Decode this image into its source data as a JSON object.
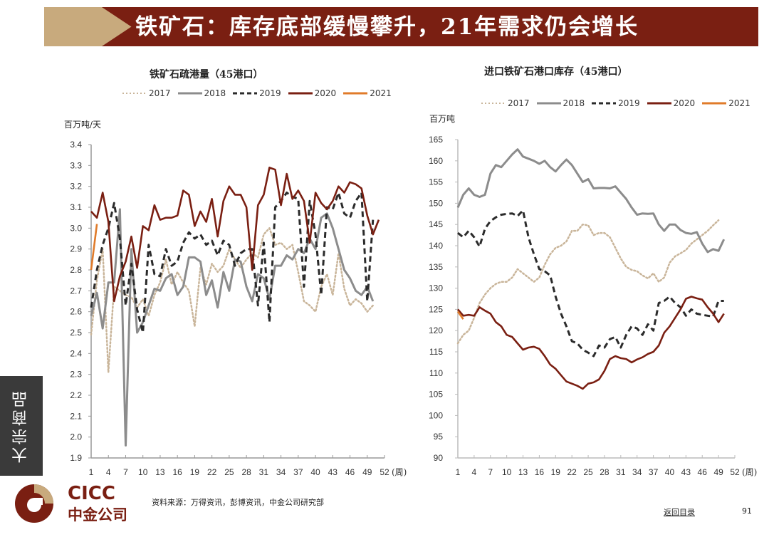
{
  "header": {
    "title": "铁矿石：库存底部缓慢攀升，21年需求仍会增长"
  },
  "side_tab": "大宗商品",
  "footer": {
    "logo_en": "CICC",
    "logo_cn": "中金公司",
    "source": "资料来源：万得资讯，彭博资讯，中金公司研究部",
    "back_link": "返回目录",
    "page_number": "91"
  },
  "colors": {
    "2017": "#c9b59a",
    "2018": "#8c8c8c",
    "2019": "#2b2b2b",
    "2020": "#7a1f12",
    "2021": "#e07b2a",
    "banner": "#7a1f12",
    "banner_accent": "#c8aa7d"
  },
  "chart_data": [
    {
      "type": "line",
      "title": "铁矿石疏港量（45港口）",
      "ylabel": "百万吨/天",
      "xlabel": "(周)",
      "ylim": [
        1.9,
        3.4
      ],
      "yticks": [
        "1.9",
        "2.0",
        "2.1",
        "2.2",
        "2.3",
        "2.4",
        "2.5",
        "2.6",
        "2.7",
        "2.8",
        "2.9",
        "3.0",
        "3.1",
        "3.2",
        "3.3",
        "3.4"
      ],
      "xticks": [
        "1",
        "4",
        "7",
        "10",
        "13",
        "16",
        "19",
        "22",
        "25",
        "28",
        "31",
        "34",
        "37",
        "40",
        "43",
        "46",
        "49",
        "52"
      ],
      "xlim": [
        1,
        52
      ],
      "legend": "top",
      "series": [
        {
          "name": "2017",
          "style": "dotted",
          "values": [
            2.49,
            2.75,
            2.9,
            2.31,
            2.72,
            2.7,
            2.68,
            2.67,
            2.62,
            2.66,
            2.58,
            2.68,
            2.74,
            2.85,
            2.73,
            2.79,
            2.74,
            2.7,
            2.53,
            2.81,
            2.73,
            2.83,
            2.79,
            2.82,
            2.9,
            2.85,
            2.81,
            2.85,
            2.88,
            2.86,
            2.97,
            3.0,
            2.92,
            2.93,
            2.9,
            2.92,
            2.79,
            2.65,
            2.63,
            2.6,
            2.72,
            2.78,
            2.68,
            2.88,
            2.71,
            2.63,
            2.66,
            2.64,
            2.6,
            2.63
          ]
        },
        {
          "name": "2018",
          "style": "solid",
          "values": [
            2.58,
            2.69,
            2.52,
            2.74,
            2.74,
            3.09,
            1.96,
            2.9,
            2.5,
            2.55,
            2.63,
            2.71,
            2.7,
            2.76,
            2.78,
            2.68,
            2.72,
            2.86,
            2.86,
            2.84,
            2.68,
            2.75,
            2.62,
            2.79,
            2.7,
            2.85,
            2.84,
            2.72,
            2.65,
            2.78,
            2.76,
            2.66,
            2.82,
            2.82,
            2.87,
            2.85,
            2.9,
            2.88,
            2.95,
            2.9,
            3.05,
            3.07,
            3.0,
            2.9,
            2.8,
            2.76,
            2.7,
            2.68,
            2.72,
            2.65
          ]
        },
        {
          "name": "2019",
          "style": "dashed",
          "values": [
            2.62,
            2.8,
            2.92,
            3.0,
            3.12,
            2.95,
            2.63,
            2.83,
            2.61,
            2.5,
            2.92,
            2.78,
            2.77,
            2.9,
            2.82,
            2.84,
            2.93,
            2.98,
            2.95,
            2.97,
            2.92,
            2.94,
            2.87,
            2.94,
            2.92,
            2.82,
            2.88,
            2.9,
            2.9,
            2.63,
            2.93,
            2.55,
            3.1,
            3.13,
            3.17,
            3.15,
            3.14,
            2.72,
            3.13,
            2.97,
            2.68,
            3.1,
            3.09,
            3.17,
            3.07,
            3.05,
            3.13,
            3.17,
            2.65,
            3.04
          ]
        },
        {
          "name": "2020",
          "style": "solid",
          "values": [
            3.08,
            3.05,
            3.17,
            3.03,
            2.65,
            2.77,
            2.84,
            2.96,
            2.81,
            3.01,
            2.99,
            3.11,
            3.04,
            3.05,
            3.05,
            3.06,
            3.18,
            3.16,
            3.01,
            3.08,
            3.03,
            3.14,
            2.96,
            3.13,
            3.2,
            3.16,
            3.16,
            3.1,
            2.8,
            3.11,
            3.16,
            3.29,
            3.28,
            3.11,
            3.26,
            3.14,
            3.18,
            3.13,
            2.93,
            3.17,
            3.12,
            3.09,
            3.13,
            3.2,
            3.17,
            3.22,
            3.21,
            3.19,
            3.06,
            2.97,
            3.04
          ]
        },
        {
          "name": "2021",
          "style": "solid",
          "values": [
            2.8,
            3.02
          ]
        }
      ]
    },
    {
      "type": "line",
      "title": "进口铁矿石港口库存（45港口）",
      "ylabel": "百万吨",
      "xlabel": "(周)",
      "ylim": [
        90,
        165
      ],
      "yticks": [
        "90",
        "95",
        "100",
        "105",
        "110",
        "115",
        "120",
        "125",
        "130",
        "135",
        "140",
        "145",
        "150",
        "155",
        "160",
        "165"
      ],
      "xticks": [
        "1",
        "4",
        "7",
        "10",
        "13",
        "16",
        "19",
        "22",
        "25",
        "28",
        "31",
        "34",
        "37",
        "40",
        "43",
        "46",
        "49",
        "52"
      ],
      "xlim": [
        1,
        52
      ],
      "legend": "top",
      "series": [
        {
          "name": "2017",
          "style": "dotted",
          "values": [
            117,
            119,
            120,
            123,
            126.5,
            128.5,
            130,
            131,
            131.5,
            131.5,
            132.5,
            134.5,
            133.5,
            132.5,
            131.5,
            132.5,
            135.5,
            138,
            139.5,
            140,
            141,
            143.5,
            143.5,
            145,
            144.8,
            142.5,
            143,
            143,
            142,
            139.5,
            137,
            135,
            134.3,
            134,
            133,
            132.3,
            133.5,
            131.5,
            132.5,
            136,
            137.5,
            138.2,
            139,
            140.5,
            141.5,
            142.5,
            143.5,
            144.8,
            146
          ]
        },
        {
          "name": "2018",
          "style": "solid",
          "values": [
            149,
            152,
            153.5,
            152,
            151.5,
            152,
            157,
            159,
            158.5,
            160,
            161.5,
            162.7,
            161,
            160.5,
            160,
            159.3,
            160,
            158.5,
            157.5,
            159,
            160.3,
            159,
            157,
            155,
            155.7,
            153.5,
            153.6,
            153.6,
            153.5,
            154,
            152.5,
            151,
            149,
            147.3,
            147.6,
            147.5,
            147.6,
            145,
            143.5,
            145,
            145,
            143.7,
            143,
            142.8,
            143.2,
            140.5,
            138.5,
            139.2,
            138.8,
            141.5
          ]
        },
        {
          "name": "2019",
          "style": "dashed",
          "values": [
            143,
            142,
            143.5,
            142,
            139.8,
            144,
            145.8,
            146.7,
            147.3,
            147.5,
            147.6,
            147,
            148.3,
            142,
            138,
            134.5,
            134,
            133,
            128,
            124,
            121,
            117.5,
            117,
            115.5,
            114.8,
            114,
            116.5,
            116,
            118,
            118.5,
            116,
            119,
            121,
            120.5,
            119,
            121.5,
            120,
            126.5,
            127,
            128,
            126.5,
            125.5,
            123.5,
            125,
            124,
            123.7,
            123.5,
            123.3,
            127,
            127
          ]
        },
        {
          "name": "2020",
          "style": "solid",
          "values": [
            125,
            123.5,
            123.7,
            123.5,
            125.5,
            124.7,
            124,
            122,
            121,
            119,
            118.5,
            117,
            115.5,
            116,
            116.2,
            115.7,
            114,
            112,
            111,
            109.5,
            108,
            107.5,
            107,
            106.3,
            107.5,
            107.8,
            108.5,
            110.5,
            113.3,
            114,
            113.5,
            113.3,
            112.5,
            113.2,
            113.7,
            114.5,
            115,
            116.5,
            119.5,
            121,
            123,
            125,
            127.5,
            128,
            127.6,
            127.3,
            125.5,
            124,
            122,
            124
          ]
        },
        {
          "name": "2021",
          "style": "solid",
          "values": [
            124.5,
            122.7
          ]
        }
      ]
    }
  ]
}
